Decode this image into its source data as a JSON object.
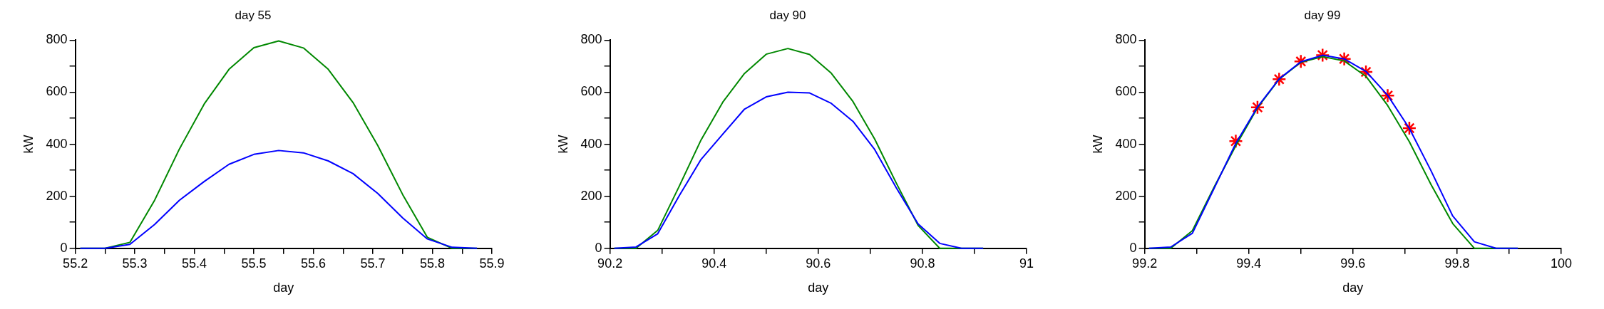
{
  "chart_data": [
    {
      "type": "line",
      "title": "day 55",
      "xlabel": "day",
      "ylabel": "kW",
      "xlim": [
        55.2,
        55.9
      ],
      "xticks": [
        55.2,
        {
          "value": 55.25,
          "label": null
        },
        55.3,
        {
          "value": 55.35,
          "label": null
        },
        55.4,
        {
          "value": 55.45,
          "label": null
        },
        55.5,
        {
          "value": 55.55,
          "label": null
        },
        55.6,
        {
          "value": 55.65,
          "label": null
        },
        55.7,
        {
          "value": 55.75,
          "label": null
        },
        55.8,
        {
          "value": 55.85,
          "label": null
        },
        55.9
      ],
      "ylim": [
        0,
        800
      ],
      "yticks": [
        0,
        {
          "value": 100,
          "label": null
        },
        200,
        {
          "value": 300,
          "label": null
        },
        400,
        {
          "value": 500,
          "label": null
        },
        600,
        {
          "value": 700,
          "label": null
        },
        800
      ],
      "marker": "none",
      "x": [
        55.2083,
        55.25,
        55.2917,
        55.3333,
        55.375,
        55.4167,
        55.4583,
        55.5,
        55.5417,
        55.5833,
        55.625,
        55.6667,
        55.7083,
        55.75,
        55.7917,
        55.8333,
        55.875
      ],
      "series": [
        {
          "color": "#0000ff",
          "values": [
            0,
            0,
            15,
            92,
            185,
            257,
            323,
            361,
            376,
            367,
            336,
            287,
            211,
            117,
            36,
            4,
            0
          ]
        },
        {
          "color": "#008800",
          "values": [
            0,
            0,
            23,
            185,
            382,
            555,
            688,
            771,
            797,
            770,
            688,
            560,
            395,
            207,
            42,
            0,
            0
          ]
        }
      ]
    },
    {
      "type": "line",
      "title": "day 90",
      "xlabel": "day",
      "ylabel": "kW",
      "xlim": [
        90.2,
        91
      ],
      "xticks": [
        90.2,
        {
          "value": 90.3,
          "label": null
        },
        90.4,
        {
          "value": 90.5,
          "label": null
        },
        90.6,
        {
          "value": 90.7,
          "label": null
        },
        90.8,
        {
          "value": 90.9,
          "label": null
        },
        91
      ],
      "ylim": [
        0,
        800
      ],
      "yticks": [
        0,
        {
          "value": 100,
          "label": null
        },
        200,
        {
          "value": 300,
          "label": null
        },
        400,
        {
          "value": 500,
          "label": null
        },
        600,
        {
          "value": 700,
          "label": null
        },
        800
      ],
      "marker": "none",
      "x": [
        90.2083,
        90.25,
        90.2917,
        90.3333,
        90.375,
        90.4167,
        90.4583,
        90.5,
        90.5417,
        90.5833,
        90.625,
        90.6667,
        90.7083,
        90.75,
        90.7917,
        90.8333,
        90.875,
        90.9167
      ],
      "series": [
        {
          "color": "#0000ff",
          "values": [
            0,
            5,
            56,
            203,
            342,
            439,
            535,
            582,
            600,
            597,
            557,
            488,
            380,
            232,
            94,
            19,
            0,
            0
          ]
        },
        {
          "color": "#008800",
          "values": [
            0,
            0,
            69,
            240,
            417,
            562,
            672,
            746,
            768,
            745,
            673,
            564,
            420,
            250,
            88,
            0,
            0,
            0
          ]
        }
      ]
    },
    {
      "type": "line",
      "title": "day 99",
      "xlabel": "day",
      "ylabel": "kW",
      "xlim": [
        99.2,
        100
      ],
      "xticks": [
        99.2,
        {
          "value": 99.3,
          "label": null
        },
        99.4,
        {
          "value": 99.5,
          "label": null
        },
        99.6,
        {
          "value": 99.7,
          "label": null
        },
        99.8,
        {
          "value": 99.9,
          "label": null
        },
        100
      ],
      "ylim": [
        0,
        800
      ],
      "yticks": [
        0,
        {
          "value": 100,
          "label": null
        },
        200,
        {
          "value": 300,
          "label": null
        },
        400,
        {
          "value": 500,
          "label": null
        },
        600,
        {
          "value": 700,
          "label": null
        },
        800
      ],
      "marker": "none",
      "x": [
        99.2083,
        99.25,
        99.2917,
        99.3333,
        99.375,
        99.4167,
        99.4583,
        99.5,
        99.5417,
        99.5833,
        99.625,
        99.6667,
        99.7083,
        99.75,
        99.7917,
        99.8333,
        99.875,
        99.9167
      ],
      "series": [
        {
          "color": "#0000ff",
          "values": [
            0,
            5,
            58,
            230,
            403,
            543,
            651,
            717,
            742,
            728,
            680,
            588,
            461,
            298,
            124,
            25,
            0,
            0
          ]
        },
        {
          "color": "#008800",
          "values": [
            0,
            0,
            68,
            235,
            394,
            540,
            650,
            715,
            737,
            720,
            661,
            549,
            410,
            245,
            95,
            0,
            0,
            0
          ]
        },
        {
          "type": "scatter",
          "marker": "cross",
          "color": "#ff0000",
          "x": [
            99.375,
            99.4167,
            99.4583,
            99.5,
            99.5417,
            99.5833,
            99.625,
            99.6667,
            99.7083
          ],
          "values": [
            412,
            542,
            650,
            718,
            742,
            728,
            678,
            587,
            462
          ]
        }
      ]
    }
  ]
}
